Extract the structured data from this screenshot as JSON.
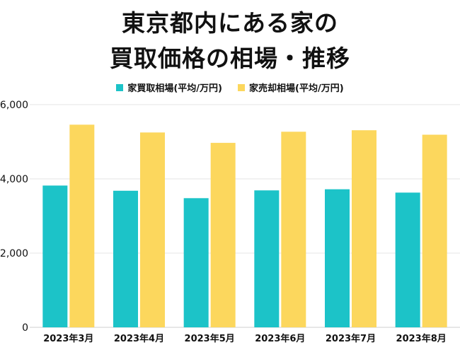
{
  "title_lines": [
    "東京都内にある家の",
    "買取価格の相場・推移"
  ],
  "colors": {
    "series1": "#1cc3c8",
    "series2": "#fcd75d",
    "grid": "#e6e6e6"
  },
  "chart_data": {
    "type": "bar",
    "title": "東京都内にある家の買取価格の相場・推移",
    "categories": [
      "2023年3月",
      "2023年4月",
      "2023年5月",
      "2023年6月",
      "2023年7月",
      "2023年8月"
    ],
    "series": [
      {
        "name": "家買取相場(平均/万円)",
        "values": [
          3820,
          3680,
          3480,
          3690,
          3720,
          3630
        ]
      },
      {
        "name": "家売却相場(平均/万円)",
        "values": [
          5460,
          5250,
          4970,
          5270,
          5310,
          5190
        ]
      }
    ],
    "ylim": [
      0,
      6000
    ],
    "yticks": [
      "0",
      "2,000",
      "4,000",
      "6,000"
    ],
    "ytick_values": [
      0,
      2000,
      4000,
      6000
    ],
    "legend": "top",
    "grid": true
  }
}
